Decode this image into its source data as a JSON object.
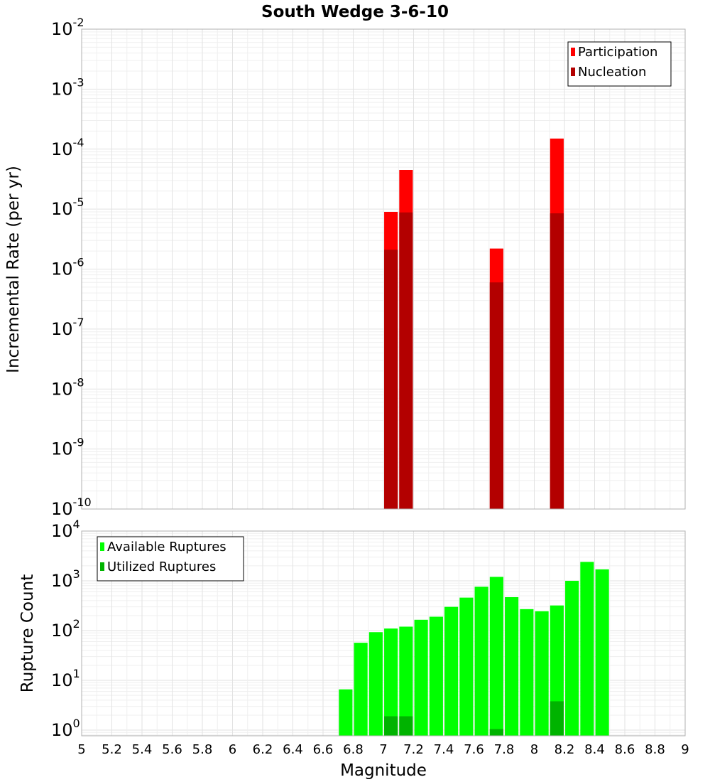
{
  "chart_data": [
    {
      "type": "bar",
      "title": "South Wedge 3-6-10",
      "ylabel": "Incremental Rate (per yr)",
      "yscale": "log",
      "ylim": [
        1e-10,
        0.01
      ],
      "xlim": [
        5,
        9
      ],
      "legend": "top-right",
      "series": [
        {
          "name": "Participation",
          "color": "#ff0000",
          "x": [
            7.05,
            7.15,
            7.75,
            8.15
          ],
          "values": [
            9e-06,
            4.5e-05,
            2.2e-06,
            0.00015
          ]
        },
        {
          "name": "Nucleation",
          "color": "#b30000",
          "x": [
            7.05,
            7.15,
            7.75,
            8.15
          ],
          "values": [
            2.1e-06,
            8.8e-06,
            6e-07,
            8.5e-06
          ]
        }
      ]
    },
    {
      "type": "bar",
      "xlabel": "Magnitude",
      "ylabel": "Rupture Count",
      "yscale": "log",
      "ylim": [
        0.77,
        10000
      ],
      "xlim": [
        5,
        9
      ],
      "legend": "top-left",
      "xticks": [
        "5",
        "5.2",
        "5.4",
        "5.6",
        "5.8",
        "6",
        "6.2",
        "6.4",
        "6.6",
        "6.8",
        "7",
        "7.2",
        "7.4",
        "7.6",
        "7.8",
        "8",
        "8.2",
        "8.4",
        "8.6",
        "8.8",
        "9"
      ],
      "series": [
        {
          "name": "Available Ruptures",
          "color": "#00ff00",
          "x": [
            6.75,
            6.85,
            6.95,
            7.05,
            7.15,
            7.25,
            7.35,
            7.45,
            7.55,
            7.65,
            7.75,
            7.85,
            7.95,
            8.05,
            8.15,
            8.25,
            8.35,
            8.45
          ],
          "values": [
            6.6,
            57,
            93,
            110,
            120,
            165,
            190,
            300,
            460,
            760,
            1200,
            470,
            270,
            245,
            320,
            1000,
            2400,
            1700
          ]
        },
        {
          "name": "Utilized Ruptures",
          "color": "#00b300",
          "x": [
            7.05,
            7.15,
            7.75,
            8.15
          ],
          "values": [
            1.9,
            1.9,
            1.05,
            3.8
          ]
        }
      ]
    }
  ]
}
